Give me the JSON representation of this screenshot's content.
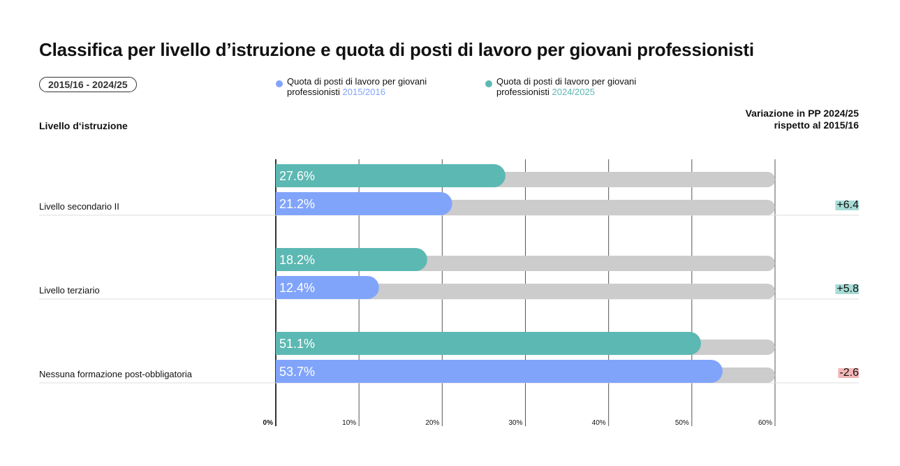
{
  "chart_data": {
    "type": "bar",
    "title": "Classifica per livello d’istruzione e quota di posti di lavoro per giovani professionisti",
    "period_badge": "2015/16 - 2024/25",
    "ylabel": "Livello d‘istruzione",
    "change_header": "Variazione in PP 2024/25 rispetto al 2015/16",
    "categories": [
      "Livello secondario II",
      "Livello terziario",
      "Nessuna formazione post-obbligatoria"
    ],
    "series": [
      {
        "name": "Quota di posti di lavoro per giovani professionisti 2024/2025",
        "name_prefix": "Quota di posti di lavoro per giovani professionisti",
        "name_year": "2024/2025",
        "color": "#5cb8b2",
        "values": [
          27.6,
          18.2,
          51.1
        ],
        "labels": [
          "27.6%",
          "18.2%",
          "51.1%"
        ]
      },
      {
        "name": "Quota di posti di lavoro per giovani professionisti 2015/2016",
        "name_prefix": "Quota di posti di lavoro per giovani professionisti",
        "name_year": "2015/2016",
        "color": "#81a4fb",
        "values": [
          21.2,
          12.4,
          53.7
        ],
        "labels": [
          "21.2%",
          "12.4%",
          "53.7%"
        ]
      }
    ],
    "changes": [
      "+6.4",
      "+5.8",
      "-2.6"
    ],
    "change_colors": {
      "positive": "#a8dcd6",
      "negative": "#f3b6b6"
    },
    "track_color": "#cccccc",
    "xlim": [
      0,
      60
    ],
    "xticks": [
      "0%",
      "10%",
      "20%",
      "30%",
      "40%",
      "50%",
      "60%"
    ],
    "grid": true,
    "legend": "top"
  }
}
